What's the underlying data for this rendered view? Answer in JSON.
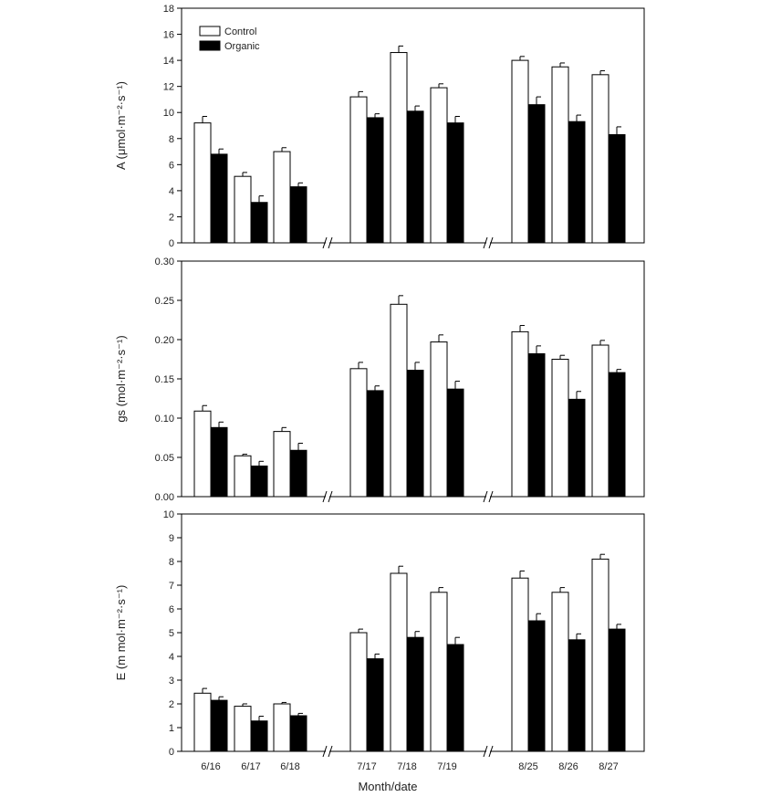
{
  "figure": {
    "xlabel": "Month/date",
    "legend": [
      "Control",
      "Organic"
    ],
    "legend_placement": "top-left of first panel"
  },
  "chart_data": [
    {
      "type": "bar",
      "panel": "A",
      "ylabel": "A (μmol·m⁻²·s⁻¹)",
      "ylim": [
        0,
        18
      ],
      "yticks": [
        "0",
        "2",
        "4",
        "6",
        "8",
        "10",
        "12",
        "14",
        "16",
        "18"
      ],
      "categories": [
        "6/16",
        "6/17",
        "6/18",
        "7/17",
        "7/18",
        "7/19",
        "8/25",
        "8/26",
        "8/27"
      ],
      "series": [
        {
          "name": "Control",
          "values": [
            9.2,
            5.1,
            7.0,
            11.2,
            14.6,
            11.9,
            14.0,
            13.5,
            12.9
          ],
          "errors": [
            0.5,
            0.3,
            0.3,
            0.4,
            0.5,
            0.3,
            0.3,
            0.3,
            0.3
          ]
        },
        {
          "name": "Organic",
          "values": [
            6.8,
            3.1,
            4.3,
            9.6,
            10.1,
            9.2,
            10.6,
            9.3,
            8.3
          ],
          "errors": [
            0.4,
            0.5,
            0.3,
            0.3,
            0.4,
            0.5,
            0.6,
            0.5,
            0.6
          ]
        }
      ]
    },
    {
      "type": "bar",
      "panel": "gs",
      "ylabel": "gs (mol·m⁻²·s⁻¹)",
      "ylim": [
        0,
        0.3
      ],
      "yticks": [
        "0.00",
        "0.05",
        "0.10",
        "0.15",
        "0.20",
        "0.25",
        "0.30"
      ],
      "categories": [
        "6/16",
        "6/17",
        "6/18",
        "7/17",
        "7/18",
        "7/19",
        "8/25",
        "8/26",
        "8/27"
      ],
      "series": [
        {
          "name": "Control",
          "values": [
            0.109,
            0.052,
            0.083,
            0.163,
            0.245,
            0.197,
            0.21,
            0.175,
            0.193
          ],
          "errors": [
            0.007,
            0.002,
            0.005,
            0.008,
            0.011,
            0.009,
            0.008,
            0.005,
            0.006
          ]
        },
        {
          "name": "Organic",
          "values": [
            0.088,
            0.039,
            0.059,
            0.135,
            0.161,
            0.137,
            0.182,
            0.124,
            0.158
          ],
          "errors": [
            0.007,
            0.006,
            0.009,
            0.006,
            0.01,
            0.01,
            0.01,
            0.01,
            0.004
          ]
        }
      ]
    },
    {
      "type": "bar",
      "panel": "E",
      "ylabel": "E (m mol·m⁻²·s⁻¹)",
      "ylim": [
        0,
        10
      ],
      "yticks": [
        "0",
        "1",
        "2",
        "3",
        "4",
        "5",
        "6",
        "7",
        "8",
        "9",
        "10"
      ],
      "categories": [
        "6/16",
        "6/17",
        "6/18",
        "7/17",
        "7/18",
        "7/19",
        "8/25",
        "8/26",
        "8/27"
      ],
      "series": [
        {
          "name": "Control",
          "values": [
            2.45,
            1.9,
            2.0,
            5.0,
            7.5,
            6.7,
            7.3,
            6.7,
            8.1
          ],
          "errors": [
            0.2,
            0.1,
            0.06,
            0.15,
            0.3,
            0.2,
            0.3,
            0.2,
            0.2
          ]
        },
        {
          "name": "Organic",
          "values": [
            2.15,
            1.28,
            1.5,
            3.9,
            4.8,
            4.5,
            5.5,
            4.7,
            5.15
          ],
          "errors": [
            0.15,
            0.2,
            0.1,
            0.2,
            0.25,
            0.3,
            0.3,
            0.25,
            0.2
          ]
        }
      ]
    }
  ]
}
